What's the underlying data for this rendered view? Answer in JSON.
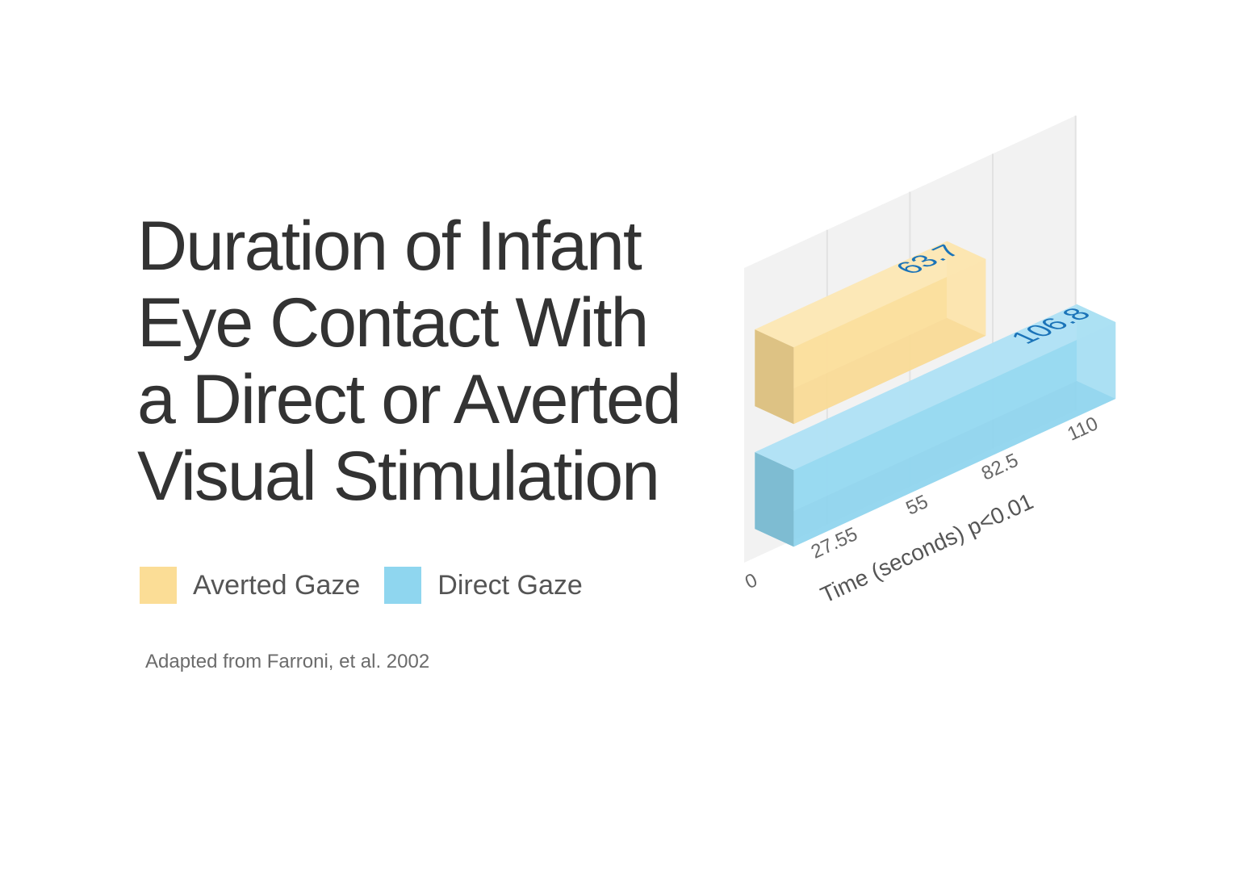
{
  "title_lines": [
    "Duration of Infant",
    "Eye Contact With",
    "a Direct or Averted",
    "Visual Stimulation"
  ],
  "legend": [
    {
      "label": "Averted Gaze",
      "color": "#fbdd96"
    },
    {
      "label": "Direct Gaze",
      "color": "#8fd6ef"
    }
  ],
  "source": "Adapted from Farroni, et al. 2002",
  "chart_data": {
    "type": "bar",
    "orientation": "horizontal",
    "style": "3d-isometric",
    "series": [
      {
        "name": "Averted Gaze",
        "value": 63.7,
        "label": "63.7",
        "color": "#fbdd96"
      },
      {
        "name": "Direct Gaze",
        "value": 106.8,
        "label": "106.8",
        "color": "#8fd6ef"
      }
    ],
    "xlabel": "Time (seconds) p<0.01",
    "xlim": [
      0,
      110
    ],
    "xticks": [
      0,
      27.55,
      55,
      82.5,
      110
    ],
    "xtick_labels": [
      "0",
      "27.55",
      "55",
      "82.5",
      "110"
    ],
    "grid": true,
    "value_label_color": "#1a73b8"
  }
}
